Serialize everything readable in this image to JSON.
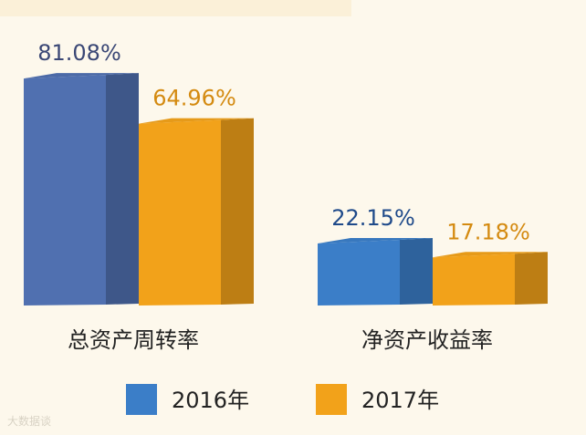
{
  "chart_data": {
    "type": "bar",
    "categories": [
      "总资产周转率",
      "净资产收益率"
    ],
    "series": [
      {
        "name": "2016年",
        "values": [
          81.08,
          22.15
        ],
        "labels": [
          "81.08%",
          "22.15%"
        ],
        "colors": [
          "#5070b0",
          "#3b7ec8"
        ],
        "label_colors": [
          "#3a4775",
          "#1f4a8a"
        ]
      },
      {
        "name": "2017年",
        "values": [
          64.96,
          17.18
        ],
        "labels": [
          "64.96%",
          "17.18%"
        ],
        "colors": [
          "#f2a21a",
          "#f2a21a"
        ],
        "label_colors": [
          "#d48a10",
          "#d48a10"
        ]
      }
    ],
    "legend_position": "bottom",
    "legend_colors": [
      "#3b7ec8",
      "#f2a21a"
    ]
  },
  "watermark": "大数据谈"
}
